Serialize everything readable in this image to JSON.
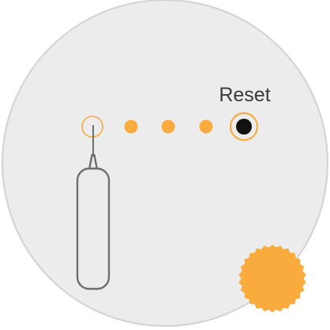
{
  "labels": {
    "reset": "Reset"
  },
  "colors": {
    "panel_fill": "#ececec",
    "panel_stroke": "#d2d2d2",
    "accent_orange": "#f9ab3e",
    "tool_outline": "#6e6e6e",
    "button_core": "#111111"
  },
  "icons": {
    "tool": "ejector-pin-icon",
    "badge": "sun-seal-icon"
  },
  "indicator_lights": {
    "total": 5,
    "filled_dots": 3,
    "empty_rings": 1,
    "reset_button": 1
  }
}
